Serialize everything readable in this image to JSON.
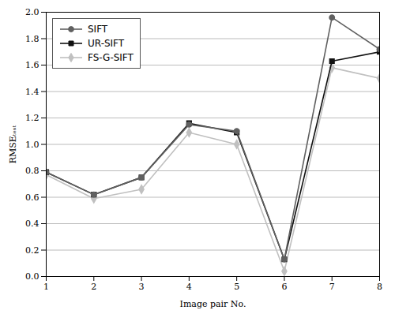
{
  "chart_data": {
    "type": "line",
    "x": [
      1,
      2,
      3,
      4,
      5,
      6,
      7,
      8
    ],
    "series": [
      {
        "name": "SIFT",
        "color": "#606060",
        "marker": "circle",
        "values": [
          0.79,
          0.62,
          0.75,
          1.15,
          1.1,
          0.13,
          1.96,
          1.72
        ]
      },
      {
        "name": "UR-SIFT",
        "color": "#111111",
        "marker": "square",
        "values": [
          0.79,
          0.62,
          0.75,
          1.16,
          1.09,
          0.13,
          1.63,
          1.7
        ]
      },
      {
        "name": "FS-G-SIFT",
        "color": "#c0c0c0",
        "marker": "diamond",
        "values": [
          0.77,
          0.59,
          0.66,
          1.09,
          1.0,
          0.04,
          1.58,
          1.5
        ]
      }
    ],
    "xlabel": "Image pair No.",
    "ylabel": "RMSEₜₑₛₜ",
    "xlim": [
      1,
      8
    ],
    "ylim": [
      0.0,
      2.0
    ],
    "xticks": [
      1,
      2,
      3,
      4,
      5,
      6,
      7,
      8
    ],
    "yticks": [
      {
        "value": 0.0,
        "label": "0.0"
      },
      0.2,
      0.4,
      0.6,
      0.8,
      {
        "value": 1.0,
        "label": "1.0"
      },
      1.2,
      1.4,
      1.6,
      1.8,
      {
        "value": 2.0,
        "label": "2.0"
      }
    ],
    "grid": "y",
    "legend": "upper left"
  }
}
